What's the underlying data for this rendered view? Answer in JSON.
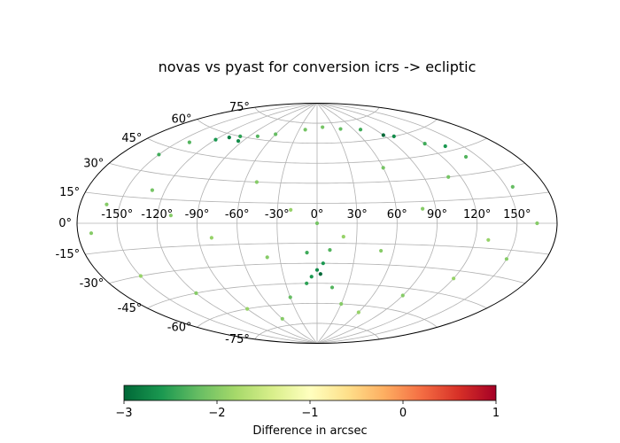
{
  "chart_data": {
    "type": "scatter",
    "projection": "aitoff",
    "title": "novas vs pyast for conversion icrs -> ecliptic",
    "x_ticks": [
      "-150°",
      "-120°",
      "-90°",
      "-60°",
      "-30°",
      "0°",
      "30°",
      "60°",
      "90°",
      "120°",
      "150°"
    ],
    "y_ticks": [
      "-75°",
      "-60°",
      "-45°",
      "-30°",
      "-15°",
      "0°",
      "15°",
      "30°",
      "45°",
      "60°",
      "75°"
    ],
    "grid": true,
    "colorbar": {
      "label": "Difference in arcsec",
      "min": -3,
      "max": 1,
      "ticks": [
        "−3",
        "−2",
        "−1",
        "0",
        "1"
      ],
      "colormap": "RdYlGn_r",
      "colors": [
        "#006837",
        "#1a9850",
        "#66bd63",
        "#a6d96a",
        "#d9ef8b",
        "#ffffbf",
        "#fee08b",
        "#fdae61",
        "#f46d43",
        "#d73027",
        "#a50026"
      ]
    },
    "series": [
      {
        "points": [
          {
            "lon": -150,
            "lat": 40,
            "value": -2.4
          },
          {
            "lon": -140,
            "lat": 50,
            "value": -2.3
          },
          {
            "lon": -120,
            "lat": 55,
            "value": -2.6
          },
          {
            "lon": -100,
            "lat": 60,
            "value": -2.5
          },
          {
            "lon": -80,
            "lat": 62,
            "value": -2.3
          },
          {
            "lon": -60,
            "lat": 65,
            "value": -2.2
          },
          {
            "lon": -130,
            "lat": 20,
            "value": -2.1
          },
          {
            "lon": -160,
            "lat": 10,
            "value": -2.0
          },
          {
            "lon": -170,
            "lat": -5,
            "value": -2.0
          },
          {
            "lon": -150,
            "lat": -30,
            "value": -1.9
          },
          {
            "lon": -120,
            "lat": -45,
            "value": -2.0
          },
          {
            "lon": -90,
            "lat": -60,
            "value": -1.9
          },
          {
            "lon": -60,
            "lat": -70,
            "value": -2.0
          },
          {
            "lon": -30,
            "lat": -55,
            "value": -2.2
          },
          {
            "lon": -10,
            "lat": -45,
            "value": -2.5
          },
          {
            "lon": -5,
            "lat": -40,
            "value": -2.6
          },
          {
            "lon": 0,
            "lat": -35,
            "value": -2.7
          },
          {
            "lon": 3,
            "lat": -38,
            "value": -3.0
          },
          {
            "lon": 5,
            "lat": -30,
            "value": -2.6
          },
          {
            "lon": 15,
            "lat": -48,
            "value": -2.3
          },
          {
            "lon": 30,
            "lat": -60,
            "value": -2.0
          },
          {
            "lon": 60,
            "lat": -65,
            "value": -1.9
          },
          {
            "lon": 90,
            "lat": -50,
            "value": -2.0
          },
          {
            "lon": 120,
            "lat": -35,
            "value": -1.9
          },
          {
            "lon": 150,
            "lat": -20,
            "value": -2.0
          },
          {
            "lon": 165,
            "lat": 0,
            "value": -2.0
          },
          {
            "lon": 155,
            "lat": 20,
            "value": -2.2
          },
          {
            "lon": 140,
            "lat": 40,
            "value": -2.3
          },
          {
            "lon": 120,
            "lat": 52,
            "value": -2.4
          },
          {
            "lon": 100,
            "lat": 60,
            "value": -2.7
          },
          {
            "lon": 90,
            "lat": 62,
            "value": -3.0
          },
          {
            "lon": 70,
            "lat": 68,
            "value": -2.4
          },
          {
            "lon": 40,
            "lat": 70,
            "value": -2.2
          },
          {
            "lon": 10,
            "lat": 72,
            "value": -2.1
          },
          {
            "lon": -20,
            "lat": 70,
            "value": -2.1
          },
          {
            "lon": -110,
            "lat": 58,
            "value": -2.8
          },
          {
            "lon": -95,
            "lat": 57,
            "value": -2.7
          },
          {
            "lon": -50,
            "lat": 30,
            "value": -2.0
          },
          {
            "lon": -20,
            "lat": 10,
            "value": -1.9
          },
          {
            "lon": 20,
            "lat": -10,
            "value": -1.9
          },
          {
            "lon": 50,
            "lat": -20,
            "value": -2.0
          },
          {
            "lon": 80,
            "lat": 10,
            "value": -2.0
          },
          {
            "lon": 110,
            "lat": 30,
            "value": -2.1
          },
          {
            "lon": -80,
            "lat": -10,
            "value": -1.9
          },
          {
            "lon": -110,
            "lat": 5,
            "value": -2.0
          },
          {
            "lon": 130,
            "lat": -10,
            "value": -1.9
          },
          {
            "lon": 60,
            "lat": 40,
            "value": -2.1
          },
          {
            "lon": -40,
            "lat": -25,
            "value": -2.0
          },
          {
            "lon": 0,
            "lat": 0,
            "value": -2.1
          },
          {
            "lon": 10,
            "lat": -20,
            "value": -2.3
          },
          {
            "lon": -8,
            "lat": -22,
            "value": -2.4
          },
          {
            "lon": 135,
            "lat": 48,
            "value": -2.6
          }
        ]
      }
    ]
  }
}
